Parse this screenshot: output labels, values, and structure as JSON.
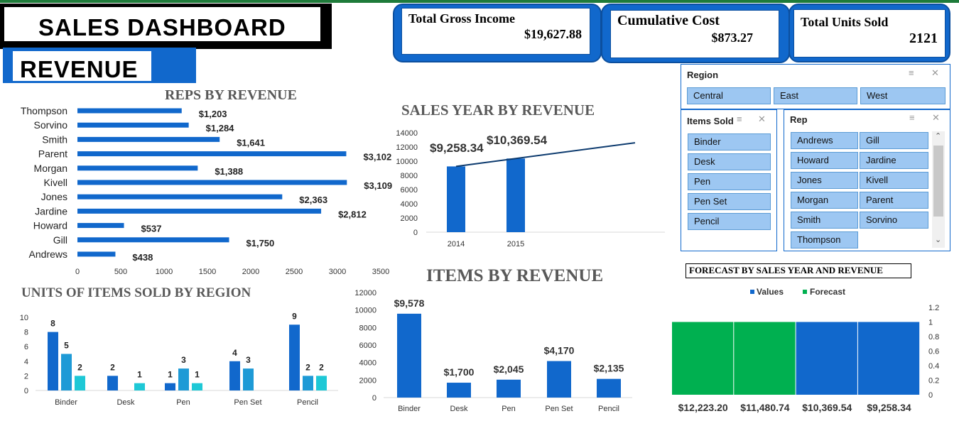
{
  "header": {
    "title": "SALES DASHBOARD",
    "subtitle": "REVENUE"
  },
  "kpis": {
    "gross_income": {
      "label": "Total Gross Income",
      "value": "$19,627.88"
    },
    "cost": {
      "label": "Cumulative Cost",
      "value": "$873.27"
    },
    "units": {
      "label": "Total Units Sold",
      "value": "2121"
    }
  },
  "colors": {
    "primary": "#1168cc",
    "mid": "#1e9ad6",
    "light": "#1ec8d6",
    "forecast": "#00b050",
    "slicer_button": "#9dc7f2"
  },
  "chart_data": [
    {
      "id": "reps",
      "type": "bar",
      "orientation": "horizontal",
      "title": "REPS BY REVENUE",
      "categories": [
        "Thompson",
        "Sorvino",
        "Smith",
        "Parent",
        "Morgan",
        "Kivell",
        "Jones",
        "Jardine",
        "Howard",
        "Gill",
        "Andrews"
      ],
      "values": [
        1203,
        1284,
        1641,
        3102,
        1388,
        3109,
        2363,
        2812,
        537,
        1750,
        438
      ],
      "labels": [
        "$1,203",
        "$1,284",
        "$1,641",
        "$3,102",
        "$1,388",
        "$3,109",
        "$2,363",
        "$2,812",
        "$537",
        "$1,750",
        "$438"
      ],
      "xlim": [
        0,
        3500
      ],
      "ticks": [
        "0",
        "500",
        "1000",
        "1500",
        "2000",
        "2500",
        "3000",
        "3500"
      ]
    },
    {
      "id": "year",
      "type": "bar",
      "title": "SALES YEAR BY REVENUE",
      "categories": [
        "2014",
        "2015"
      ],
      "values": [
        9258.34,
        10369.54
      ],
      "labels": [
        "$9,258.34",
        "$10,369.54"
      ],
      "trendline": true,
      "ylim": [
        0,
        14000
      ],
      "ticks": [
        "0",
        "2000",
        "4000",
        "6000",
        "8000",
        "10000",
        "12000",
        "14000"
      ]
    },
    {
      "id": "units",
      "type": "bar",
      "title": "UNITS OF ITEMS SOLD BY REGION",
      "categories": [
        "Binder",
        "Desk",
        "Pen",
        "Pen Set",
        "Pencil"
      ],
      "series": [
        {
          "values": [
            8,
            2,
            1,
            4,
            9
          ],
          "labels": [
            "8",
            "2",
            "1",
            "4",
            "9"
          ]
        },
        {
          "values": [
            5,
            0,
            3,
            3,
            2
          ],
          "labels": [
            "5",
            "",
            "3",
            "3",
            "2"
          ]
        },
        {
          "values": [
            2,
            1,
            1,
            0,
            2
          ],
          "labels": [
            "2",
            "1",
            "1",
            "",
            "2"
          ]
        }
      ],
      "ylim": [
        0,
        10
      ],
      "ticks": [
        "0",
        "2",
        "4",
        "6",
        "8",
        "10"
      ]
    },
    {
      "id": "items",
      "type": "bar",
      "title": "ITEMS BY REVENUE",
      "categories": [
        "Binder",
        "Desk",
        "Pen",
        "Pen Set",
        "Pencil"
      ],
      "values": [
        9578,
        1700,
        2045,
        4170,
        2135
      ],
      "labels": [
        "$9,578",
        "$1,700",
        "$2,045",
        "$4,170",
        "$2,135"
      ],
      "ylim": [
        0,
        12000
      ],
      "ticks": [
        "0",
        "2000",
        "4000",
        "6000",
        "8000",
        "10000",
        "12000"
      ]
    },
    {
      "id": "forecast",
      "type": "bar",
      "title": "FORECAST BY SALES YEAR AND REVENUE",
      "legend": [
        "Values",
        "Forecast"
      ],
      "legend_position": "top",
      "categories": [
        "$12,223.20",
        "$11,480.74",
        "$10,369.54",
        "$9,258.34"
      ],
      "values": [
        1,
        1,
        1,
        1
      ],
      "kinds": [
        "Forecast",
        "Forecast",
        "Values",
        "Values"
      ],
      "ylim": [
        0,
        1.2
      ],
      "ticks": [
        "0",
        "0.2",
        "0.4",
        "0.6",
        "0.8",
        "1",
        "1.2"
      ]
    }
  ],
  "slicers": {
    "region": {
      "title": "Region",
      "items": [
        "Central",
        "East",
        "West"
      ]
    },
    "items": {
      "title": "Items Sold",
      "items": [
        "Binder",
        "Desk",
        "Pen",
        "Pen Set",
        "Pencil"
      ]
    },
    "rep": {
      "title": "Rep",
      "items": [
        "Andrews",
        "Gill",
        "Howard",
        "Jardine",
        "Jones",
        "Kivell",
        "Morgan",
        "Parent",
        "Smith",
        "Sorvino",
        "Thompson"
      ]
    }
  }
}
